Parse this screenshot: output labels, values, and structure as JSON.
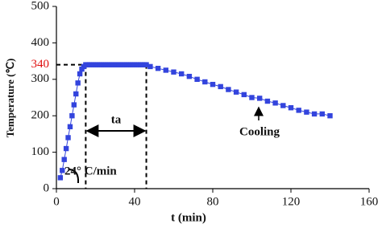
{
  "chart_data": {
    "type": "line",
    "x_label": "t (min)",
    "y_label": "Temperature (℃)",
    "xlim": [
      0,
      160
    ],
    "xticks": [
      0,
      40,
      80,
      120,
      160
    ],
    "ylim": [
      0,
      500
    ],
    "yticks": [
      0,
      100,
      200,
      300,
      400,
      500
    ],
    "reference": {
      "y": 340,
      "x": [
        15,
        46
      ],
      "label_color": "#e01010"
    },
    "annotations": {
      "hold": "ta",
      "cooling": "Cooling",
      "rate": "24° C/min"
    },
    "color": "#3344dd",
    "x": [
      2,
      3,
      4,
      5,
      6,
      7,
      8,
      9,
      10,
      11,
      12,
      13,
      14,
      15,
      16,
      17,
      18,
      19,
      20,
      21,
      22,
      23,
      24,
      25,
      26,
      27,
      28,
      29,
      30,
      31,
      32,
      33,
      34,
      35,
      36,
      37,
      38,
      39,
      40,
      41,
      42,
      43,
      44,
      45,
      46,
      48,
      52,
      56,
      60,
      64,
      68,
      72,
      76,
      80,
      84,
      88,
      92,
      96,
      100,
      104,
      108,
      112,
      116,
      120,
      124,
      128,
      132,
      136,
      140
    ],
    "values": [
      30,
      50,
      80,
      110,
      140,
      170,
      200,
      230,
      260,
      290,
      315,
      328,
      335,
      340,
      340,
      340,
      340,
      340,
      340,
      340,
      340,
      340,
      340,
      340,
      340,
      340,
      340,
      340,
      340,
      340,
      340,
      340,
      340,
      340,
      340,
      340,
      340,
      340,
      340,
      340,
      340,
      340,
      340,
      340,
      340,
      335,
      330,
      325,
      320,
      315,
      308,
      300,
      293,
      286,
      280,
      272,
      265,
      258,
      250,
      248,
      240,
      235,
      228,
      222,
      215,
      210,
      205,
      205,
      200
    ]
  }
}
